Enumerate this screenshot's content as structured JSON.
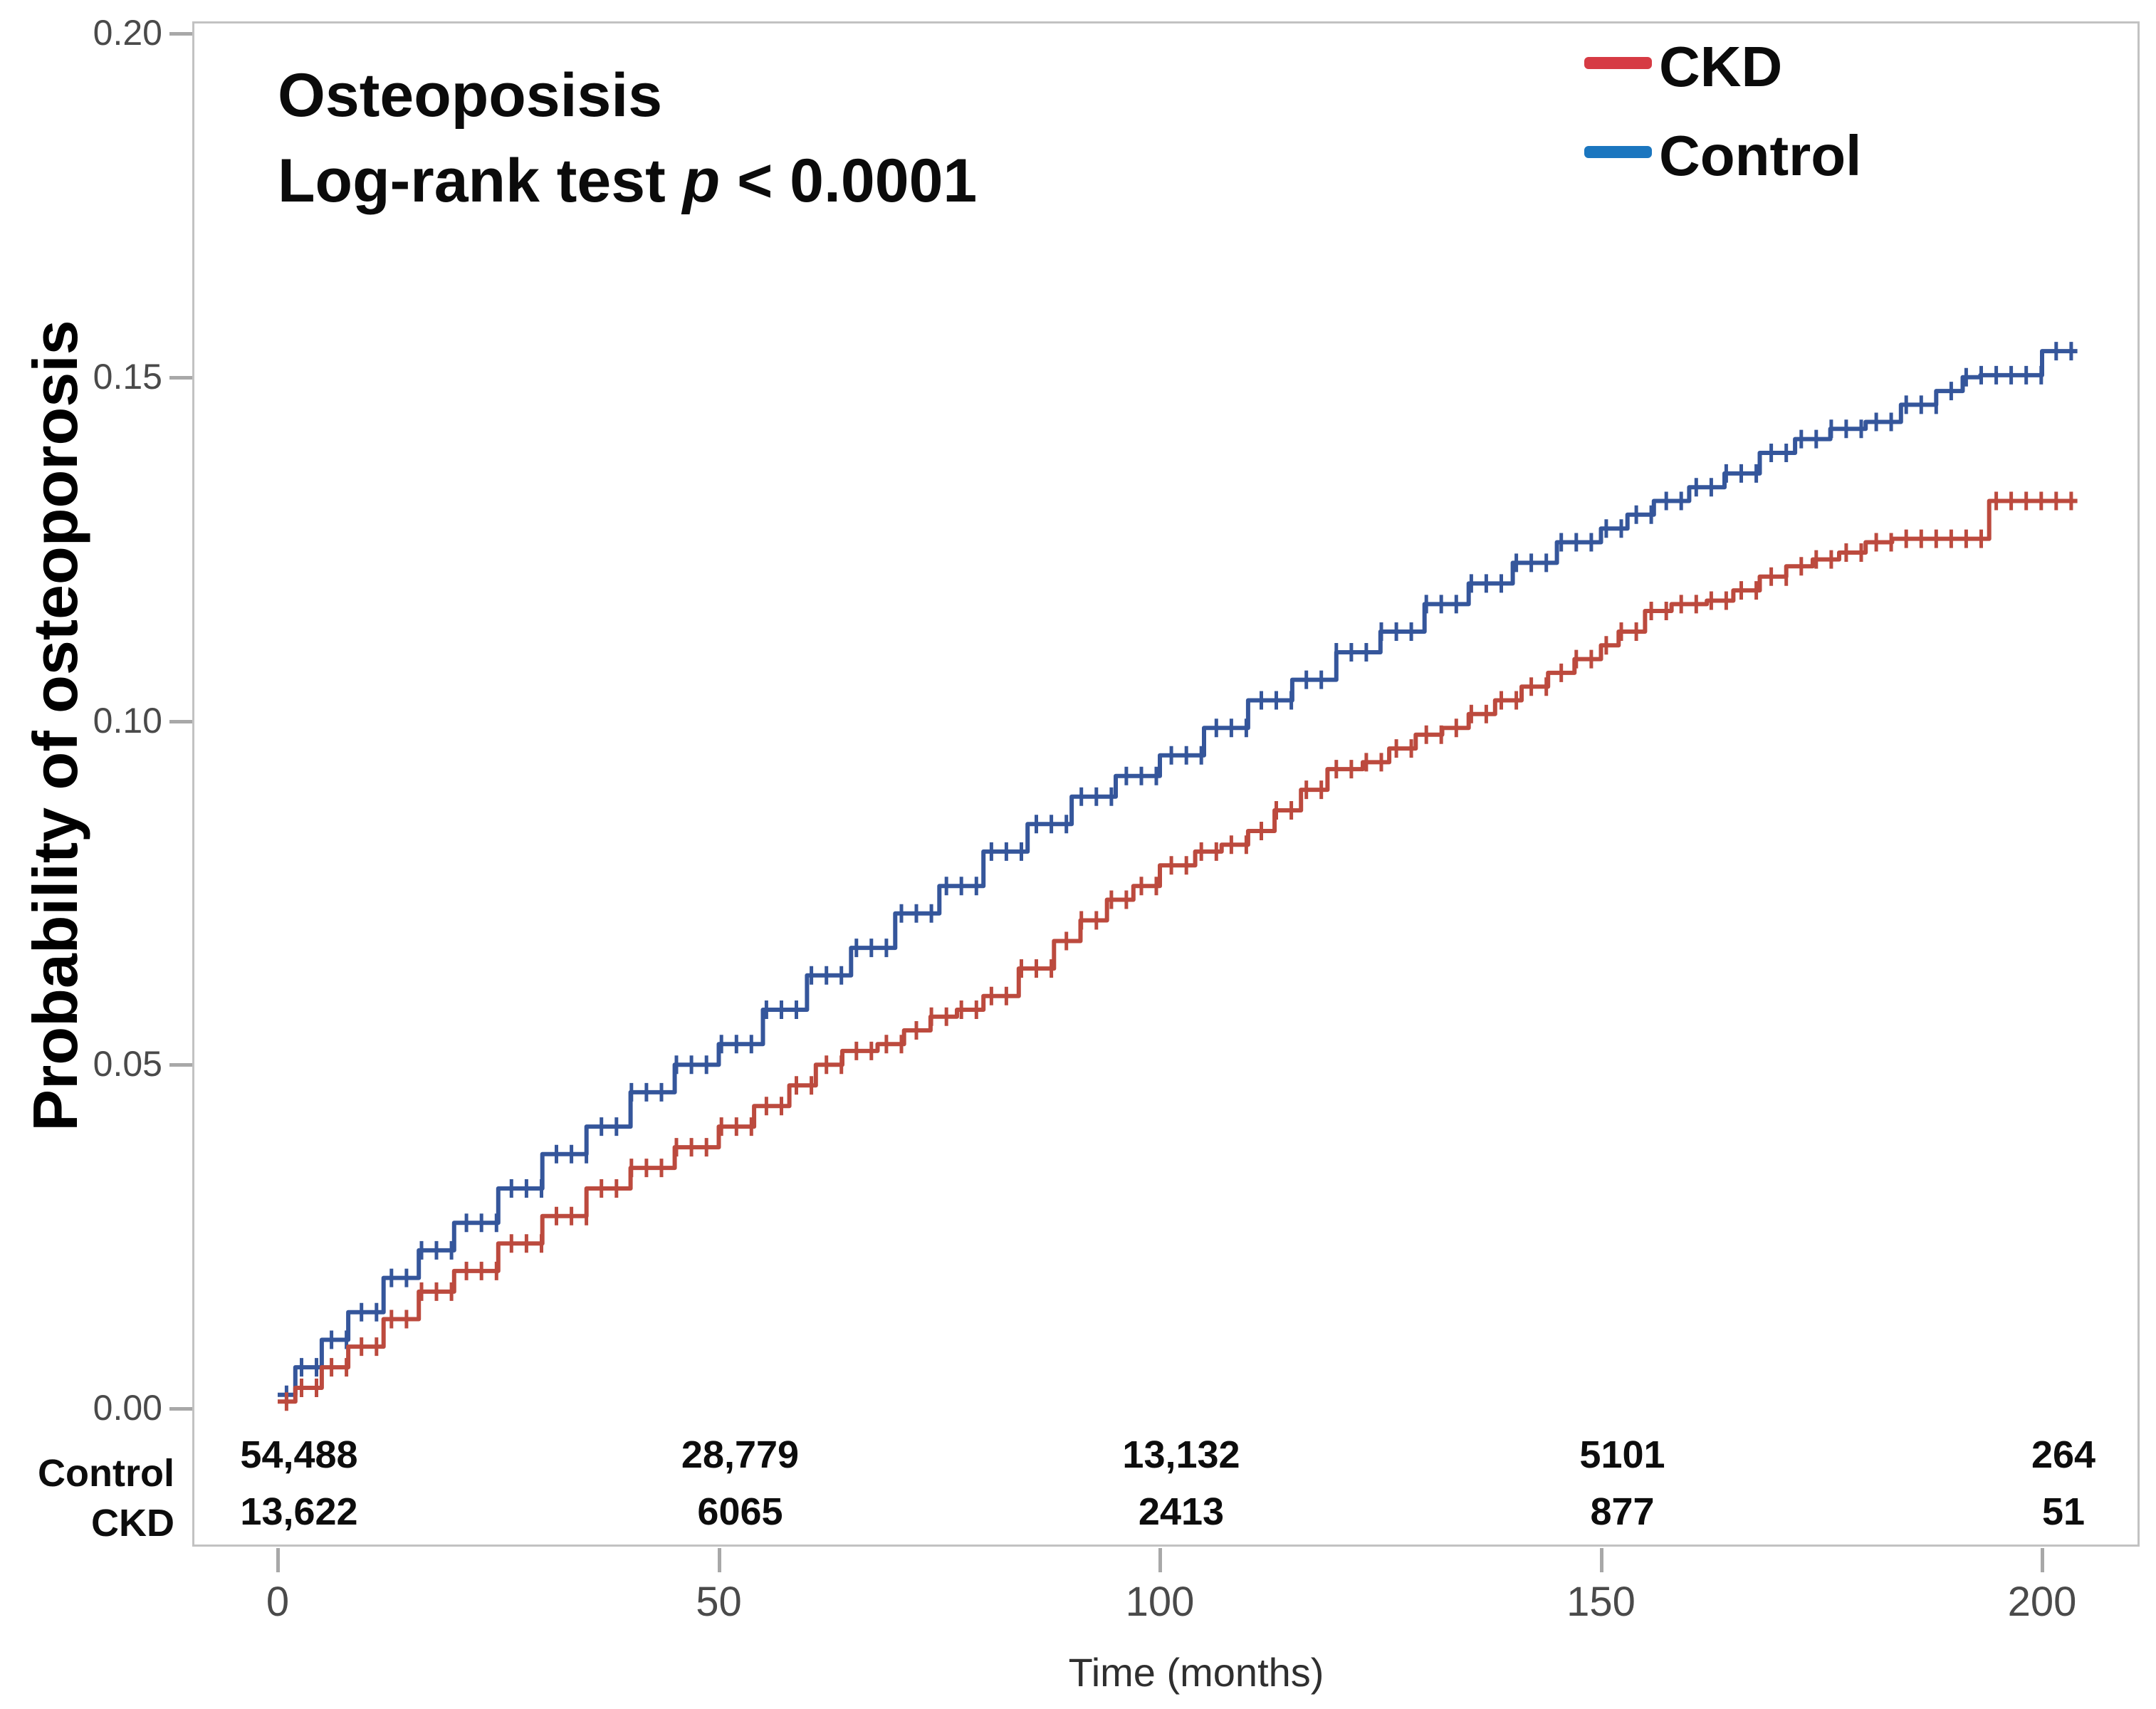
{
  "figure": {
    "title": "Osteoposisis",
    "subtitle_prefix": "Log-rank test ",
    "subtitle_p": "p",
    "subtitle_suffix": " < 0.0001",
    "x_axis_label": "Time (months)",
    "y_axis_label": "Probability of osteoporosis"
  },
  "legend": [
    {
      "id": "ckd",
      "label": "CKD",
      "color": "#D63B44"
    },
    {
      "id": "control",
      "label": "Control",
      "color": "#1B76BF"
    }
  ],
  "chart_data": {
    "type": "line",
    "subtype": "kaplan-meier-cumulative-incidence",
    "title": "Osteoposisis",
    "annotation": "Log-rank test p < 0.0001",
    "xlabel": "Time (months)",
    "ylabel": "Probability of osteoporosis",
    "xlim": [
      0,
      211
    ],
    "ylim": [
      0.0,
      0.2
    ],
    "grid": false,
    "legend_position": "top-right-inside",
    "x_ticks": [
      {
        "value": 0,
        "label": "0"
      },
      {
        "value": 50,
        "label": "50"
      },
      {
        "value": 100,
        "label": "100"
      },
      {
        "value": 150,
        "label": "150"
      },
      {
        "value": 200,
        "label": "200"
      }
    ],
    "y_ticks": [
      {
        "value": 0.0,
        "label": "0.00"
      },
      {
        "value": 0.05,
        "label": "0.05"
      },
      {
        "value": 0.1,
        "label": "0.10"
      },
      {
        "value": 0.15,
        "label": "0.15"
      },
      {
        "value": 0.2,
        "label": "0.20"
      }
    ],
    "censor_mark_interval_months": 1.7,
    "series": [
      {
        "name": "Control",
        "curve_color": "#35569B",
        "legend_color": "#1B76BF",
        "points": [
          [
            0,
            0.002
          ],
          [
            2,
            0.006
          ],
          [
            5,
            0.01
          ],
          [
            8,
            0.014
          ],
          [
            12,
            0.019
          ],
          [
            16,
            0.023
          ],
          [
            20,
            0.027
          ],
          [
            25,
            0.032
          ],
          [
            30,
            0.037
          ],
          [
            35,
            0.041
          ],
          [
            40,
            0.046
          ],
          [
            45,
            0.05
          ],
          [
            50,
            0.053
          ],
          [
            55,
            0.058
          ],
          [
            60,
            0.063
          ],
          [
            65,
            0.067
          ],
          [
            70,
            0.072
          ],
          [
            75,
            0.076
          ],
          [
            80,
            0.081
          ],
          [
            85,
            0.085
          ],
          [
            90,
            0.089
          ],
          [
            95,
            0.092
          ],
          [
            100,
            0.095
          ],
          [
            105,
            0.099
          ],
          [
            110,
            0.103
          ],
          [
            115,
            0.106
          ],
          [
            120,
            0.11
          ],
          [
            125,
            0.113
          ],
          [
            130,
            0.117
          ],
          [
            135,
            0.12
          ],
          [
            140,
            0.123
          ],
          [
            145,
            0.126
          ],
          [
            150,
            0.128
          ],
          [
            153,
            0.13
          ],
          [
            156,
            0.132
          ],
          [
            160,
            0.134
          ],
          [
            164,
            0.136
          ],
          [
            168,
            0.139
          ],
          [
            172,
            0.141
          ],
          [
            176,
            0.1425
          ],
          [
            180,
            0.1435
          ],
          [
            184,
            0.146
          ],
          [
            188,
            0.148
          ],
          [
            191,
            0.15
          ],
          [
            193,
            0.1503
          ],
          [
            200,
            0.1538
          ],
          [
            204,
            0.1538
          ]
        ]
      },
      {
        "name": "CKD",
        "curve_color": "#BC4A3E",
        "legend_color": "#D63B44",
        "points": [
          [
            0,
            0.001
          ],
          [
            2,
            0.003
          ],
          [
            5,
            0.006
          ],
          [
            8,
            0.009
          ],
          [
            12,
            0.013
          ],
          [
            16,
            0.017
          ],
          [
            20,
            0.02
          ],
          [
            25,
            0.024
          ],
          [
            30,
            0.028
          ],
          [
            35,
            0.032
          ],
          [
            40,
            0.035
          ],
          [
            45,
            0.038
          ],
          [
            50,
            0.041
          ],
          [
            54,
            0.044
          ],
          [
            58,
            0.047
          ],
          [
            61,
            0.05
          ],
          [
            64,
            0.052
          ],
          [
            68,
            0.053
          ],
          [
            71,
            0.055
          ],
          [
            74,
            0.057
          ],
          [
            77,
            0.058
          ],
          [
            80,
            0.06
          ],
          [
            84,
            0.064
          ],
          [
            88,
            0.068
          ],
          [
            91,
            0.071
          ],
          [
            94,
            0.074
          ],
          [
            97,
            0.076
          ],
          [
            100,
            0.079
          ],
          [
            104,
            0.081
          ],
          [
            107,
            0.082
          ],
          [
            110,
            0.084
          ],
          [
            113,
            0.087
          ],
          [
            116,
            0.09
          ],
          [
            119,
            0.093
          ],
          [
            123,
            0.094
          ],
          [
            126,
            0.096
          ],
          [
            129,
            0.098
          ],
          [
            132,
            0.099
          ],
          [
            135,
            0.101
          ],
          [
            138,
            0.103
          ],
          [
            141,
            0.105
          ],
          [
            144,
            0.107
          ],
          [
            147,
            0.109
          ],
          [
            150,
            0.111
          ],
          [
            152,
            0.113
          ],
          [
            155,
            0.116
          ],
          [
            158,
            0.117
          ],
          [
            162,
            0.1175
          ],
          [
            165,
            0.119
          ],
          [
            168,
            0.121
          ],
          [
            171,
            0.1225
          ],
          [
            174,
            0.1235
          ],
          [
            177,
            0.1245
          ],
          [
            180,
            0.126
          ],
          [
            183,
            0.1265
          ],
          [
            193,
            0.1265
          ],
          [
            194,
            0.132
          ],
          [
            204,
            0.132
          ]
        ]
      }
    ],
    "at_risk": {
      "times": [
        0,
        50,
        100,
        150,
        200
      ],
      "rows": [
        {
          "label": "Control",
          "values": [
            "54,488",
            "28,779",
            "13,132",
            "5101",
            "264"
          ]
        },
        {
          "label": "CKD",
          "values": [
            "13,622",
            "6065",
            "2413",
            "877",
            "51"
          ]
        }
      ]
    }
  }
}
